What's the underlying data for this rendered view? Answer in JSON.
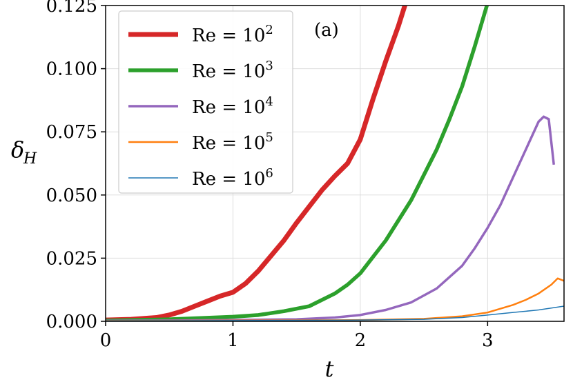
{
  "chart_data": {
    "type": "line",
    "panel_label": "(a)",
    "xlabel": "t",
    "ylabel_main": "δ",
    "ylabel_sub": "H",
    "xlim": [
      0,
      3.6
    ],
    "ylim": [
      0,
      0.125
    ],
    "xticks": [
      "0",
      "1",
      "2",
      "3"
    ],
    "yticks": [
      "0.000",
      "0.025",
      "0.050",
      "0.075",
      "0.100",
      "0.125"
    ],
    "grid": true,
    "legend_position": "top-left",
    "series": [
      {
        "name": "Re = 10",
        "exponent": "2",
        "color": "#d62728",
        "x": [
          0,
          0.2,
          0.4,
          0.5,
          0.6,
          0.7,
          0.8,
          0.9,
          1.0,
          1.1,
          1.2,
          1.3,
          1.4,
          1.5,
          1.6,
          1.7,
          1.8,
          1.9,
          2.0,
          2.1,
          2.2,
          2.3,
          2.4
        ],
        "y": [
          0.0005,
          0.0008,
          0.0015,
          0.0025,
          0.004,
          0.006,
          0.008,
          0.01,
          0.0115,
          0.015,
          0.02,
          0.026,
          0.032,
          0.039,
          0.0455,
          0.052,
          0.0575,
          0.0625,
          0.072,
          0.088,
          0.103,
          0.117,
          0.133
        ]
      },
      {
        "name": "Re = 10",
        "exponent": "3",
        "color": "#2ca02c",
        "x": [
          0,
          0.5,
          1.0,
          1.2,
          1.4,
          1.6,
          1.8,
          1.9,
          2.0,
          2.2,
          2.4,
          2.6,
          2.7,
          2.8,
          2.9,
          3.0,
          3.05
        ],
        "y": [
          0.0003,
          0.0008,
          0.0018,
          0.0025,
          0.004,
          0.006,
          0.011,
          0.0145,
          0.019,
          0.032,
          0.048,
          0.068,
          0.08,
          0.093,
          0.109,
          0.126,
          0.134
        ]
      },
      {
        "name": "Re = 10",
        "exponent": "4",
        "color": "#9467bd",
        "x": [
          0,
          0.5,
          1.0,
          1.5,
          1.8,
          2.0,
          2.2,
          2.4,
          2.6,
          2.8,
          2.9,
          3.0,
          3.1,
          3.2,
          3.3,
          3.4,
          3.44,
          3.48,
          3.52
        ],
        "y": [
          0.0002,
          0.0003,
          0.0005,
          0.0008,
          0.0015,
          0.0025,
          0.0045,
          0.0075,
          0.013,
          0.022,
          0.029,
          0.037,
          0.046,
          0.057,
          0.068,
          0.079,
          0.081,
          0.08,
          0.062
        ]
      },
      {
        "name": "Re = 10",
        "exponent": "5",
        "color": "#ff7f0e",
        "x": [
          0,
          1.0,
          2.0,
          2.5,
          2.8,
          3.0,
          3.2,
          3.3,
          3.4,
          3.5,
          3.55,
          3.6
        ],
        "y": [
          0.0002,
          0.0003,
          0.0005,
          0.001,
          0.002,
          0.0035,
          0.0065,
          0.0085,
          0.011,
          0.0145,
          0.017,
          0.016
        ]
      },
      {
        "name": "Re = 10",
        "exponent": "6",
        "color": "#1f77b4",
        "x": [
          0,
          1.0,
          2.0,
          2.5,
          2.8,
          3.0,
          3.2,
          3.4,
          3.6
        ],
        "y": [
          0.0002,
          0.0003,
          0.0005,
          0.0008,
          0.0015,
          0.0025,
          0.0035,
          0.0045,
          0.006
        ]
      }
    ],
    "line_widths": [
      7,
      5.5,
      3.5,
      2.5,
      1.5
    ]
  }
}
